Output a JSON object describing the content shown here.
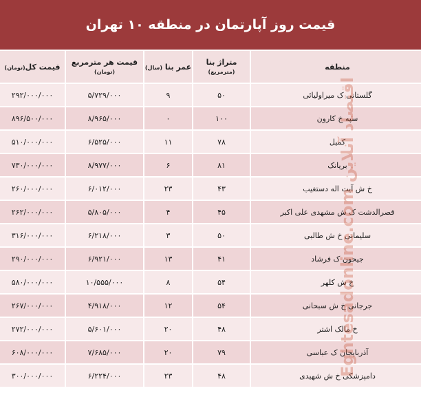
{
  "title": "قیمت روز آپارتمان در منطقه ۱۰ تهران",
  "headers": {
    "region": "منطقه",
    "area": "متراژ بنا",
    "area_unit": "(مترمربع)",
    "age": "عمر بنا",
    "age_unit": "(سال)",
    "price_sqm": "قیمت هر مترمربع",
    "price_sqm_unit": "(تومان)",
    "total": "قیمت کل",
    "total_unit": "(تومان)"
  },
  "rows": [
    {
      "region": "گلستانی ک میراولیائی",
      "area": "۵۰",
      "age": "۹",
      "price_sqm": "۵/۷۲۹/۰۰۰",
      "total": "۲۹۲/۰۰۰/۰۰۰"
    },
    {
      "region": "سپه خ کارون",
      "area": "۱۰۰",
      "age": "۰",
      "price_sqm": "۸/۹۶۵/۰۰۰",
      "total": "۸۹۶/۵۰۰/۰۰۰"
    },
    {
      "region": "کمیل",
      "area": "۷۸",
      "age": "۱۱",
      "price_sqm": "۶/۵۲۵/۰۰۰",
      "total": "۵۱۰/۰۰۰/۰۰۰"
    },
    {
      "region": "بریانک",
      "area": "۸۱",
      "age": "۶",
      "price_sqm": "۸/۹۷۷/۰۰۰",
      "total": "۷۳۰/۰۰۰/۰۰۰"
    },
    {
      "region": "خ ش آیت اله دستغیب",
      "area": "۴۳",
      "age": "۲۳",
      "price_sqm": "۶/۰۱۲/۰۰۰",
      "total": "۲۶۰/۰۰۰/۰۰۰"
    },
    {
      "region": "قصرالدشت ک ش مشهدی علی اکبر",
      "area": "۴۵",
      "age": "۴",
      "price_sqm": "۵/۸۰۵/۰۰۰",
      "total": "۲۶۲/۰۰۰/۰۰۰"
    },
    {
      "region": "سلیمانی خ ش طالبی",
      "area": "۵۰",
      "age": "۳",
      "price_sqm": "۶/۲۱۸/۰۰۰",
      "total": "۳۱۶/۰۰۰/۰۰۰"
    },
    {
      "region": "جیحون ک فرشاد",
      "area": "۴۱",
      "age": "۱۳",
      "price_sqm": "۶/۹۲۱/۰۰۰",
      "total": "۲۹۰/۰۰۰/۰۰۰"
    },
    {
      "region": "خ ش کلهر",
      "area": "۵۴",
      "age": "۸",
      "price_sqm": "۱۰/۵۵۵/۰۰۰",
      "total": "۵۸۰/۰۰۰/۰۰۰"
    },
    {
      "region": "جرجانی خ ش سبحانی",
      "area": "۵۴",
      "age": "۱۲",
      "price_sqm": "۴/۹۱۸/۰۰۰",
      "total": "۲۶۷/۰۰۰/۰۰۰"
    },
    {
      "region": "خ مالک اشتر",
      "area": "۴۸",
      "age": "۲۰",
      "price_sqm": "۵/۶۰۱/۰۰۰",
      "total": "۲۷۲/۰۰۰/۰۰۰"
    },
    {
      "region": "آذربایجان ک عباسی",
      "area": "۷۹",
      "age": "۲۰",
      "price_sqm": "۷/۶۸۵/۰۰۰",
      "total": "۶۰۸/۰۰۰/۰۰۰"
    },
    {
      "region": "دامپزشکی خ ش شهیدی",
      "area": "۴۸",
      "age": "۲۳",
      "price_sqm": "۶/۲۲۴/۰۰۰",
      "total": "۳۰۰/۰۰۰/۰۰۰"
    }
  ],
  "watermark": "Eghtesadonline.com اقتصاد آنلاین",
  "colors": {
    "title_bg": "#9c3a3b",
    "row_light": "#f7e9ea",
    "row_dark": "#efd5d7"
  }
}
